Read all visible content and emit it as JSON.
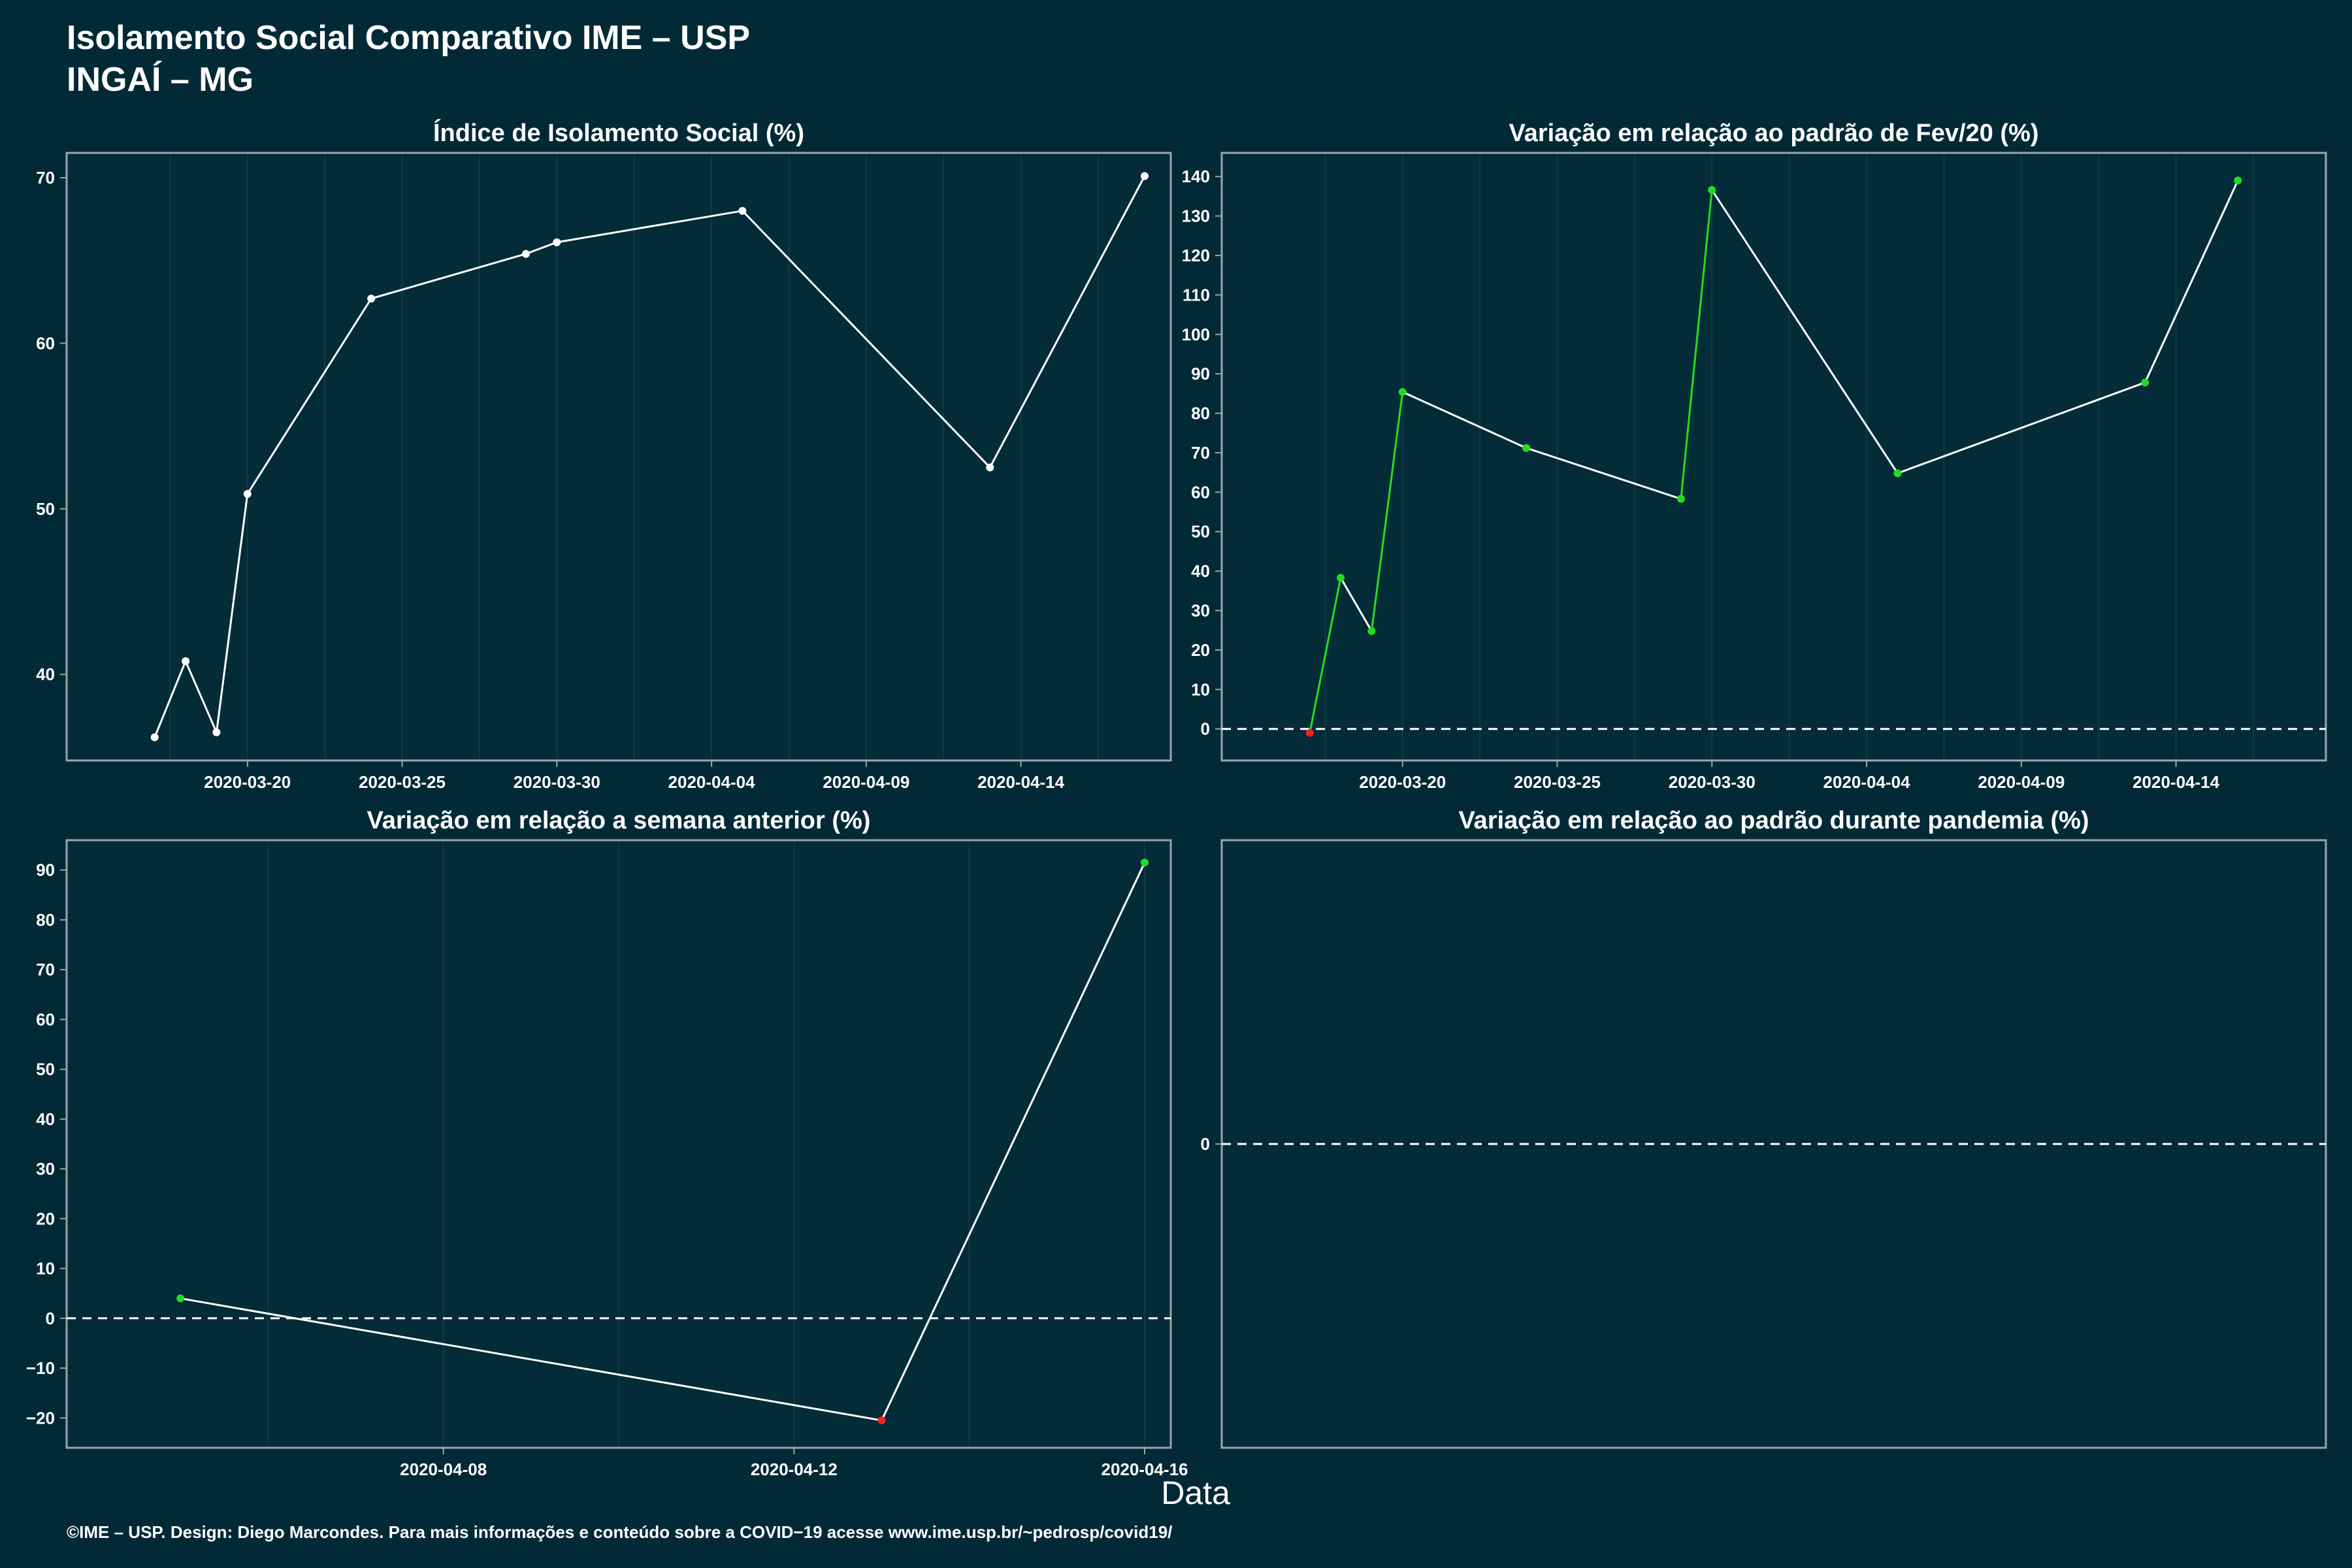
{
  "page": {
    "title_line1": "Isolamento Social Comparativo IME – USP",
    "title_line2": "INGAÍ – MG",
    "x_axis_label": "Data",
    "caption": "©IME – USP. Design: Diego Marcondes. Para mais informações e conteúdo sobre a COVID−19 acesse www.ime.usp.br/~pedrosp/covid19/"
  },
  "colors": {
    "background": "#022a36",
    "panel": "#032b38",
    "border": "#9aa6aa",
    "grid": "#0e3c48",
    "line": "#ffffff",
    "positive": "#22dd22",
    "negative": "#ee2222"
  },
  "chart_data": [
    {
      "type": "line",
      "title": "Índice de Isolamento Social (%)",
      "xlabel": "Data",
      "ylabel": "",
      "x_axis_type": "date",
      "xlim": [
        "2020-03-15",
        "2020-04-18"
      ],
      "ylim": [
        34.8,
        71.5
      ],
      "y_ticks": [
        40,
        50,
        60,
        70
      ],
      "x_ticks": [
        "2020-03-20",
        "2020-03-25",
        "2020-03-30",
        "2020-04-04",
        "2020-04-09",
        "2020-04-14"
      ],
      "zero_line": false,
      "points": [
        {
          "x": "2020-03-17",
          "y": 36.2
        },
        {
          "x": "2020-03-18",
          "y": 40.8
        },
        {
          "x": "2020-03-19",
          "y": 36.5
        },
        {
          "x": "2020-03-20",
          "y": 50.9
        },
        {
          "x": "2020-03-24",
          "y": 62.7
        },
        {
          "x": "2020-03-29",
          "y": 65.4
        },
        {
          "x": "2020-03-30",
          "y": 66.1
        },
        {
          "x": "2020-04-05",
          "y": 68.0
        },
        {
          "x": "2020-04-13",
          "y": 52.5
        },
        {
          "x": "2020-04-18",
          "y": 70.1
        }
      ]
    },
    {
      "type": "line",
      "title": "Variação em relação ao padrão de Fev/20 (%)",
      "xlabel": "Data",
      "ylabel": "",
      "x_axis_type": "date",
      "xlim": [
        "2020-03-15",
        "2020-04-18"
      ],
      "ylim": [
        -8,
        146
      ],
      "y_ticks": [
        0,
        10,
        20,
        30,
        40,
        50,
        60,
        70,
        80,
        90,
        100,
        110,
        120,
        130,
        140
      ],
      "x_ticks": [
        "2020-03-20",
        "2020-03-25",
        "2020-03-30",
        "2020-04-04",
        "2020-04-09",
        "2020-04-14"
      ],
      "zero_line": true,
      "points": [
        {
          "x": "2020-03-17",
          "y": -1
        },
        {
          "x": "2020-03-18",
          "y": 38.3
        },
        {
          "x": "2020-03-19",
          "y": 24.8
        },
        {
          "x": "2020-03-20",
          "y": 85.4
        },
        {
          "x": "2020-03-24",
          "y": 71.2
        },
        {
          "x": "2020-03-29",
          "y": 58.3
        },
        {
          "x": "2020-03-30",
          "y": 136.6
        },
        {
          "x": "2020-04-05",
          "y": 64.8
        },
        {
          "x": "2020-04-13",
          "y": 87.8
        },
        {
          "x": "2020-04-16",
          "y": 139.0
        }
      ]
    },
    {
      "type": "line",
      "title": "Variação em relação a semana anterior (%)",
      "xlabel": "Data",
      "ylabel": "",
      "x_axis_type": "date",
      "xlim": [
        "2020-04-04",
        "2020-04-16"
      ],
      "ylim": [
        -26,
        96
      ],
      "y_ticks": [
        -20,
        -10,
        0,
        10,
        20,
        30,
        40,
        50,
        60,
        70,
        80,
        90
      ],
      "x_ticks": [
        "2020-04-08",
        "2020-04-12",
        "2020-04-16"
      ],
      "zero_line": true,
      "points": [
        {
          "x": "2020-04-05",
          "y": 4.0
        },
        {
          "x": "2020-04-13",
          "y": -20.5
        },
        {
          "x": "2020-04-16",
          "y": 91.5
        }
      ]
    },
    {
      "type": "line",
      "title": "Variação em relação ao padrão durante pandemia (%)",
      "xlabel": "Data",
      "ylabel": "",
      "x_axis_type": "date",
      "ylim": [
        -1,
        1
      ],
      "y_ticks": [
        0
      ],
      "x_ticks": [],
      "zero_line": true,
      "points": []
    }
  ]
}
